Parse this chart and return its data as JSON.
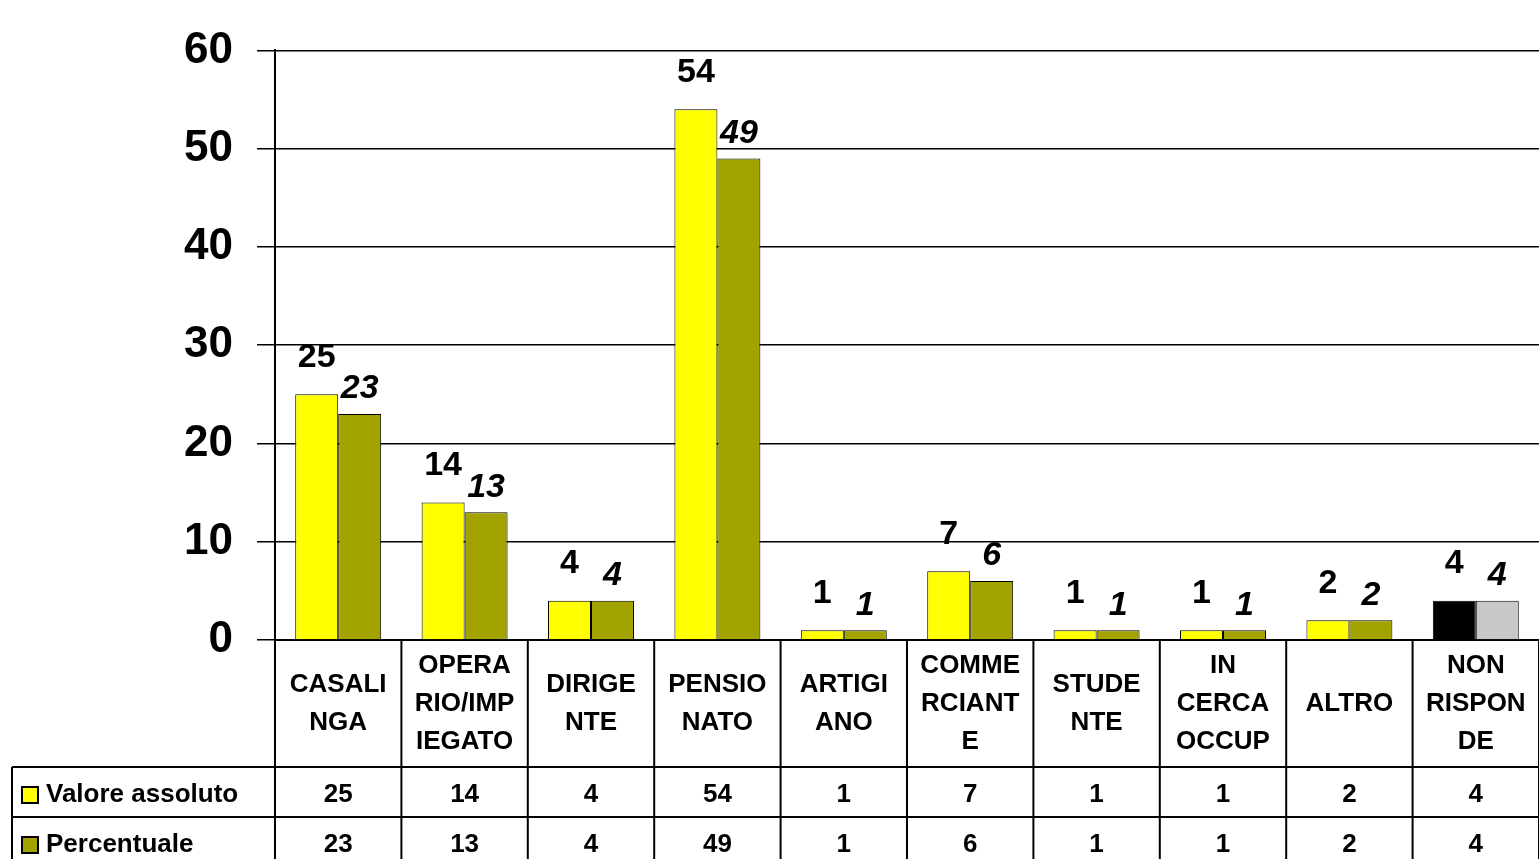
{
  "chart_data": {
    "type": "bar",
    "categories": [
      "CASALINGA",
      "OPERARIO/IMPIEGATO",
      "DIRIGENTE",
      "PENSIONATO",
      "ARTIGIANO",
      "COMMERCIANTE",
      "STUDENTE",
      "IN CERCA OCCUP",
      "ALTRO",
      "NON RISPONDE"
    ],
    "series": [
      {
        "name": "Valore assoluto",
        "color": "#ffff00",
        "colors": [
          "#ffff00",
          "#ffff00",
          "#ffff00",
          "#ffff00",
          "#ffff00",
          "#ffff00",
          "#ffff00",
          "#ffff00",
          "#ffff00",
          "#000000"
        ],
        "values": [
          25,
          14,
          4,
          54,
          1,
          7,
          1,
          1,
          2,
          4
        ],
        "value_labels": [
          "25",
          "14",
          "4",
          "54",
          "1",
          "7",
          "1",
          "1",
          "2",
          "4"
        ]
      },
      {
        "name": "Percentuale",
        "color": "#a3a300",
        "colors": [
          "#a3a300",
          "#a3a300",
          "#a3a300",
          "#a3a300",
          "#a3a300",
          "#a3a300",
          "#a3a300",
          "#a3a300",
          "#a3a300",
          "#c8c8c8"
        ],
        "values": [
          23,
          13,
          4,
          49,
          1,
          6,
          1,
          1,
          2,
          4
        ],
        "value_labels": [
          "23",
          "13",
          "4",
          "49",
          "1",
          "6",
          "1",
          "1",
          "2",
          "4"
        ]
      }
    ],
    "ylim": [
      0,
      60
    ],
    "yticks": [
      0,
      10,
      20,
      30,
      40,
      50,
      60
    ],
    "annotations": [
      "25",
      "14",
      "4",
      "54",
      "1",
      "7",
      "1",
      "1",
      "2",
      "4",
      "23",
      "13",
      "4",
      "49",
      "1",
      "6",
      "1",
      "1",
      "2",
      "4"
    ],
    "grid": "y",
    "legend": "bottom"
  }
}
